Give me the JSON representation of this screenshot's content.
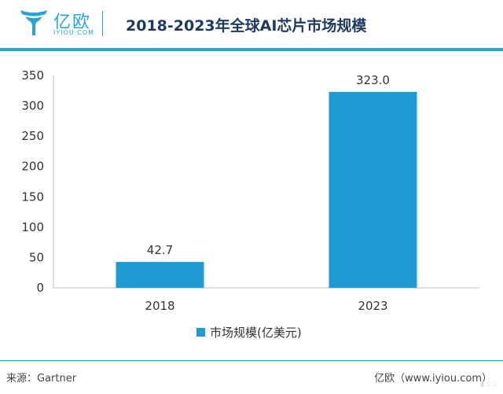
{
  "header": {
    "logo_cn": "亿欧",
    "logo_en": "IYIOU·COM",
    "title": "2018-2023年全球AI芯片市场规模"
  },
  "colors": {
    "accent": "#29a3d6",
    "bar": "#1f9bd4",
    "title": "#1e3a5f"
  },
  "chart_data": {
    "type": "bar",
    "categories": [
      "2018",
      "2023"
    ],
    "series": [
      {
        "name": "市场规模(亿美元)",
        "values": [
          42.7,
          323.0
        ]
      }
    ],
    "data_labels": [
      "42.7",
      "323.0"
    ],
    "yticks": [
      "0",
      "50",
      "100",
      "150",
      "200",
      "250",
      "300",
      "350"
    ],
    "ylim": [
      0,
      350
    ],
    "grid": false,
    "legend_position": "bottom"
  },
  "footer": {
    "source": "来源：Gartner",
    "site": "亿欧（www.iyiou.com）"
  }
}
